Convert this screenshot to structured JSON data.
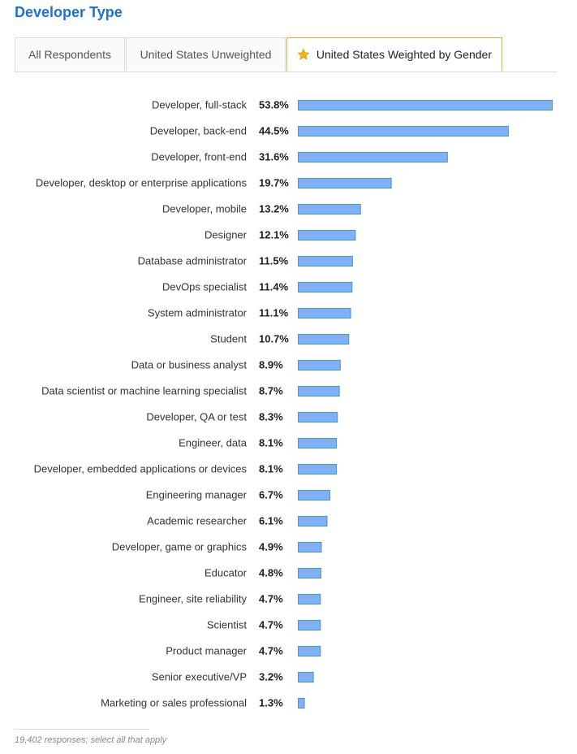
{
  "title": "Developer Type",
  "tabs": [
    {
      "label": "All Respondents",
      "active": false
    },
    {
      "label": "United States Unweighted",
      "active": false
    },
    {
      "label": "United States Weighted by Gender",
      "active": true,
      "icon": "star-icon"
    }
  ],
  "colors": {
    "title": "#1d70d6",
    "bar_fill": "#7fb2f2",
    "bar_border": "#4a90e2",
    "active_tab_border": "#e8a83a",
    "star": "#f5b21a"
  },
  "footer": "19,402 responses; select all that apply",
  "chart_data": {
    "type": "bar",
    "orientation": "horizontal",
    "unit": "%",
    "categories": [
      "Developer, full-stack",
      "Developer, back-end",
      "Developer, front-end",
      "Developer, desktop or enterprise applications",
      "Developer, mobile",
      "Designer",
      "Database administrator",
      "DevOps specialist",
      "System administrator",
      "Student",
      "Data or business analyst",
      "Data scientist or machine learning specialist",
      "Developer, QA or test",
      "Engineer, data",
      "Developer, embedded applications or devices",
      "Engineering manager",
      "Academic researcher",
      "Developer, game or graphics",
      "Educator",
      "Engineer, site reliability",
      "Scientist",
      "Product manager",
      "Senior executive/VP",
      "Marketing or sales professional"
    ],
    "values": [
      53.8,
      44.5,
      31.6,
      19.7,
      13.2,
      12.1,
      11.5,
      11.4,
      11.1,
      10.7,
      8.9,
      8.7,
      8.3,
      8.1,
      8.1,
      6.7,
      6.1,
      4.9,
      4.8,
      4.7,
      4.7,
      4.7,
      3.2,
      1.3
    ],
    "value_labels": [
      "53.8%",
      "44.5%",
      "31.6%",
      "19.7%",
      "13.2%",
      "12.1%",
      "11.5%",
      "11.4%",
      "11.1%",
      "10.7%",
      "8.9%",
      "8.7%",
      "8.3%",
      "8.1%",
      "8.1%",
      "6.7%",
      "6.1%",
      "4.9%",
      "4.8%",
      "4.7%",
      "4.7%",
      "4.7%",
      "3.2%",
      "1.3%"
    ],
    "xlim": [
      0,
      53.8
    ],
    "grid": false,
    "legend": "none"
  }
}
